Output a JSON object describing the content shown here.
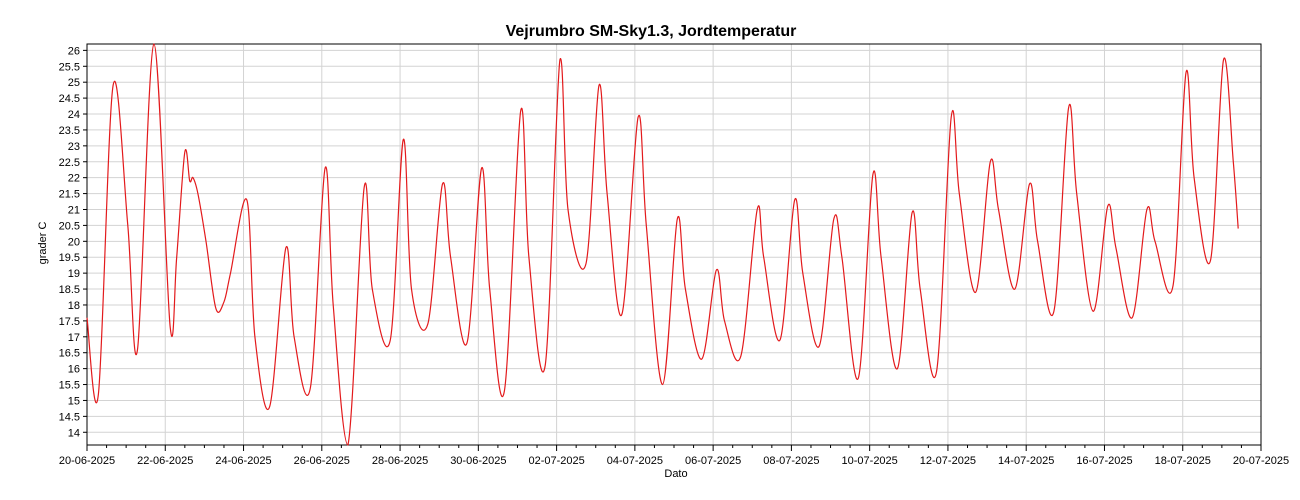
{
  "chart_data": {
    "type": "line",
    "title": "Vejrumbro SM-Sky1.3, Jordtemperatur",
    "xlabel": "Dato",
    "ylabel": "grader C",
    "xlim": [
      "2025-06-20",
      "2025-07-20"
    ],
    "ylim": [
      13.6,
      26.2
    ],
    "x_ticks": [
      "20-06-2025",
      "22-06-2025",
      "24-06-2025",
      "26-06-2025",
      "28-06-2025",
      "30-06-2025",
      "02-07-2025",
      "04-07-2025",
      "06-07-2025",
      "08-07-2025",
      "10-07-2025",
      "12-07-2025",
      "14-07-2025",
      "16-07-2025",
      "18-07-2025",
      "20-07-2025"
    ],
    "y_ticks": [
      "14",
      "14.5",
      "15",
      "15.5",
      "16",
      "16.5",
      "17",
      "17.5",
      "18",
      "18.5",
      "19",
      "19.5",
      "20",
      "20.5",
      "21",
      "21.5",
      "22",
      "22.5",
      "23",
      "23.5",
      "24",
      "24.5",
      "25",
      "25.5",
      "26"
    ],
    "grid": true,
    "line_color": "#e31a1c",
    "series": [
      {
        "name": "",
        "x": [
          "2025-06-20 00:00",
          "2025-06-20 07:00",
          "2025-06-20 16:00",
          "2025-06-21 01:00",
          "2025-06-21 07:00",
          "2025-06-21 17:00",
          "2025-06-22 03:00",
          "2025-06-22 07:00",
          "2025-06-22 12:00",
          "2025-06-22 15:00",
          "2025-06-22 17:00",
          "2025-06-22 20:00",
          "2025-06-23 01:00",
          "2025-06-23 07:00",
          "2025-06-23 12:00",
          "2025-06-23 16:00",
          "2025-06-24 02:00",
          "2025-06-24 07:00",
          "2025-06-24 16:00",
          "2025-06-25 02:00",
          "2025-06-25 07:00",
          "2025-06-25 17:00",
          "2025-06-26 02:00",
          "2025-06-26 07:00",
          "2025-06-26 16:00",
          "2025-06-27 02:00",
          "2025-06-27 07:00",
          "2025-06-27 18:00",
          "2025-06-28 02:00",
          "2025-06-28 07:00",
          "2025-06-28 17:00",
          "2025-06-29 02:00",
          "2025-06-29 07:00",
          "2025-06-29 17:00",
          "2025-06-30 02:00",
          "2025-06-30 07:00",
          "2025-06-30 16:00",
          "2025-07-01 02:00",
          "2025-07-01 07:00",
          "2025-07-01 17:00",
          "2025-07-02 02:00",
          "2025-07-02 07:00",
          "2025-07-02 18:00",
          "2025-07-03 02:00",
          "2025-07-03 07:00",
          "2025-07-03 16:00",
          "2025-07-04 02:00",
          "2025-07-04 07:00",
          "2025-07-04 17:00",
          "2025-07-05 02:00",
          "2025-07-05 07:00",
          "2025-07-05 17:00",
          "2025-07-06 02:00",
          "2025-07-06 07:00",
          "2025-07-06 17:00",
          "2025-07-07 03:00",
          "2025-07-07 07:00",
          "2025-07-07 17:00",
          "2025-07-08 02:00",
          "2025-07-08 07:00",
          "2025-07-08 17:00",
          "2025-07-09 02:00",
          "2025-07-09 07:00",
          "2025-07-09 17:00",
          "2025-07-10 02:00",
          "2025-07-10 07:00",
          "2025-07-10 17:00",
          "2025-07-11 02:00",
          "2025-07-11 07:00",
          "2025-07-11 17:00",
          "2025-07-12 02:00",
          "2025-07-12 07:00",
          "2025-07-12 17:00",
          "2025-07-13 02:00",
          "2025-07-13 07:00",
          "2025-07-13 17:00",
          "2025-07-14 02:00",
          "2025-07-14 07:00",
          "2025-07-14 17:00",
          "2025-07-15 02:00",
          "2025-07-15 07:00",
          "2025-07-15 17:00",
          "2025-07-16 02:00",
          "2025-07-16 07:00",
          "2025-07-16 17:00",
          "2025-07-17 02:00",
          "2025-07-17 07:00",
          "2025-07-17 18:00",
          "2025-07-18 02:00",
          "2025-07-18 07:00",
          "2025-07-18 17:00",
          "2025-07-19 01:00",
          "2025-07-19 07:00",
          "2025-07-19 10:00"
        ],
        "values": [
          17.6,
          15.2,
          24.9,
          20.5,
          16.6,
          26.2,
          17.3,
          19.5,
          22.8,
          21.9,
          22.0,
          21.5,
          20.0,
          17.9,
          18.1,
          19.0,
          21.3,
          17.0,
          14.8,
          19.8,
          17.0,
          15.4,
          22.3,
          18.0,
          13.6,
          21.7,
          18.5,
          16.9,
          23.2,
          18.5,
          17.4,
          21.8,
          19.5,
          16.8,
          22.3,
          18.5,
          15.3,
          24.1,
          19.5,
          16.1,
          25.7,
          21.0,
          19.3,
          24.9,
          21.5,
          17.7,
          23.9,
          20.5,
          15.5,
          20.7,
          18.5,
          16.3,
          19.1,
          17.5,
          16.4,
          21.0,
          19.5,
          16.9,
          21.3,
          19.0,
          16.7,
          20.7,
          19.5,
          15.7,
          22.1,
          19.5,
          16.0,
          20.9,
          18.5,
          15.9,
          23.9,
          21.5,
          18.4,
          22.5,
          21.0,
          18.5,
          21.8,
          20.0,
          17.8,
          24.2,
          21.5,
          17.8,
          21.1,
          19.8,
          17.6,
          21.0,
          20.0,
          18.6,
          25.3,
          22.0,
          19.4,
          25.7,
          22.5,
          20.4
        ]
      }
    ]
  }
}
